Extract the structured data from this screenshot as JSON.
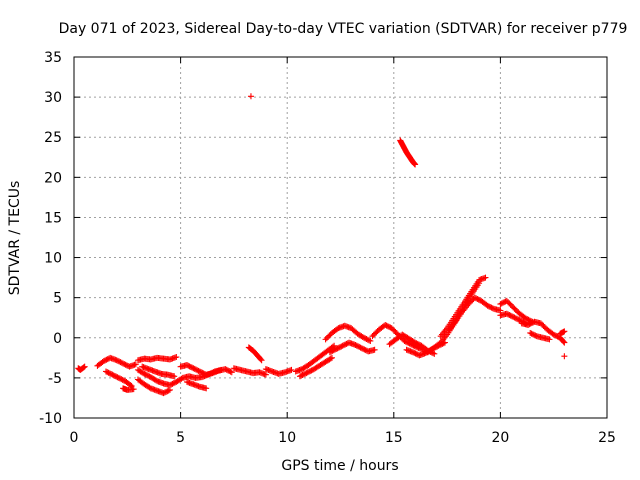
{
  "chart_data": {
    "type": "scatter",
    "title": "Day 071 of 2023, Sidereal Day-to-day VTEC variation (SDTVAR) for receiver p779",
    "xlabel": "GPS time / hours",
    "ylabel": "SDTVAR / TECUs",
    "xlim": [
      0,
      25
    ],
    "ylim": [
      -10,
      35
    ],
    "xticks": [
      "0",
      "5",
      "10",
      "15",
      "20",
      "25"
    ],
    "yticks": [
      "-10",
      "-5",
      "0",
      "5",
      "10",
      "15",
      "20",
      "25",
      "30",
      "35"
    ],
    "xtick_values": [
      0,
      5,
      10,
      15,
      20,
      25
    ],
    "ytick_values": [
      -10,
      -5,
      0,
      5,
      10,
      15,
      20,
      25,
      30,
      35
    ],
    "grid": true,
    "marker": "+",
    "series": [
      {
        "name": "SDTVAR",
        "color": "#ff0000",
        "segments": [
          {
            "x": [
              0.2,
              0.3,
              0.5
            ],
            "y": [
              -3.8,
              -4.0,
              -3.6
            ]
          },
          {
            "x": [
              1.1,
              1.4,
              1.7,
              2.0,
              2.3,
              2.6,
              2.9
            ],
            "y": [
              -3.5,
              -2.9,
              -2.5,
              -2.8,
              -3.2,
              -3.6,
              -3.3
            ]
          },
          {
            "x": [
              1.5,
              1.8,
              2.1,
              2.4,
              2.7
            ],
            "y": [
              -4.2,
              -4.6,
              -5.0,
              -5.4,
              -6.0
            ]
          },
          {
            "x": [
              2.3,
              2.5,
              2.8
            ],
            "y": [
              -6.3,
              -6.5,
              -6.4
            ]
          },
          {
            "x": [
              3.0,
              3.3,
              3.6,
              3.9,
              4.2,
              4.5,
              4.8
            ],
            "y": [
              -2.8,
              -2.6,
              -2.7,
              -2.5,
              -2.6,
              -2.7,
              -2.4
            ]
          },
          {
            "x": [
              3.0,
              3.3,
              3.6,
              3.9,
              4.2,
              4.5,
              4.8,
              5.1,
              5.4,
              5.7,
              6.0,
              6.3,
              6.6,
              6.9
            ],
            "y": [
              -4.0,
              -4.5,
              -4.9,
              -5.4,
              -5.7,
              -5.9,
              -5.5,
              -5.0,
              -4.8,
              -5.0,
              -4.9,
              -4.6,
              -4.2,
              -4.0
            ]
          },
          {
            "x": [
              3.0,
              3.3,
              3.6,
              3.9,
              4.2,
              4.5
            ],
            "y": [
              -5.2,
              -5.8,
              -6.3,
              -6.6,
              -6.9,
              -6.5
            ]
          },
          {
            "x": [
              3.2,
              3.5,
              3.8,
              4.1,
              4.4,
              4.7
            ],
            "y": [
              -3.6,
              -3.9,
              -4.2,
              -4.5,
              -4.6,
              -4.8
            ]
          },
          {
            "x": [
              5.0,
              5.3,
              5.6,
              5.9,
              6.2,
              6.5,
              6.8,
              7.1,
              7.4
            ],
            "y": [
              -3.6,
              -3.4,
              -3.8,
              -4.2,
              -4.6,
              -4.4,
              -4.1,
              -3.9,
              -4.3
            ]
          },
          {
            "x": [
              5.3,
              5.6,
              5.9,
              6.2
            ],
            "y": [
              -5.5,
              -5.8,
              -6.1,
              -6.3
            ]
          },
          {
            "x": [
              7.5,
              7.8,
              8.1,
              8.4,
              8.7,
              9.0
            ],
            "y": [
              -3.8,
              -4.0,
              -4.2,
              -4.4,
              -4.3,
              -4.6
            ]
          },
          {
            "x": [
              8.2,
              8.4,
              8.6,
              8.8
            ],
            "y": [
              -1.2,
              -1.6,
              -2.2,
              -2.8
            ]
          },
          {
            "x": [
              9.0,
              9.3,
              9.6,
              9.9,
              10.2
            ],
            "y": [
              -3.9,
              -4.2,
              -4.5,
              -4.3,
              -4.0
            ]
          },
          {
            "x": [
              10.4,
              10.7,
              11.0,
              11.3,
              11.6,
              11.9,
              12.2
            ],
            "y": [
              -4.2,
              -3.9,
              -3.4,
              -2.8,
              -2.2,
              -1.6,
              -1.0
            ]
          },
          {
            "x": [
              10.6,
              10.9,
              11.2,
              11.5,
              11.8,
              12.1
            ],
            "y": [
              -4.8,
              -4.4,
              -4.0,
              -3.5,
              -3.0,
              -2.5
            ]
          },
          {
            "x": [
              11.8,
              12.1,
              12.4,
              12.7,
              13.0,
              13.3,
              13.6,
              13.9
            ],
            "y": [
              -0.2,
              0.6,
              1.2,
              1.5,
              1.2,
              0.5,
              0.0,
              -0.4
            ]
          },
          {
            "x": [
              12.0,
              12.3,
              12.6,
              12.9,
              13.2,
              13.5,
              13.8,
              14.1
            ],
            "y": [
              -1.8,
              -1.4,
              -1.0,
              -0.6,
              -0.9,
              -1.3,
              -1.7,
              -1.5
            ]
          },
          {
            "x": [
              14.0,
              14.3,
              14.6,
              14.9,
              15.2,
              15.5,
              15.8,
              16.1,
              16.4
            ],
            "y": [
              0.2,
              1.0,
              1.6,
              1.2,
              0.4,
              -0.4,
              -0.8,
              -1.2,
              -1.5
            ]
          },
          {
            "x": [
              14.8,
              15.1,
              15.4,
              15.7,
              16.0,
              16.3,
              16.6,
              16.9
            ],
            "y": [
              -0.8,
              -0.2,
              0.4,
              -0.1,
              -0.6,
              -1.0,
              -1.6,
              -2.0
            ]
          },
          {
            "x": [
              15.6,
              15.9,
              16.2,
              16.5,
              16.8,
              17.1,
              17.4
            ],
            "y": [
              -1.5,
              -1.8,
              -2.2,
              -1.9,
              -1.4,
              -1.0,
              -0.6
            ]
          },
          {
            "x": [
              16.6,
              16.9,
              17.2,
              17.5,
              17.8,
              18.1,
              18.4,
              18.7,
              19.0
            ],
            "y": [
              -1.8,
              -1.2,
              -0.6,
              0.4,
              1.6,
              3.0,
              4.4,
              5.6,
              6.8
            ]
          },
          {
            "x": [
              17.2,
              17.5,
              17.8,
              18.1,
              18.4,
              18.7,
              19.0,
              19.3
            ],
            "y": [
              0.2,
              1.2,
              2.4,
              3.6,
              4.8,
              6.0,
              7.2,
              7.5
            ]
          },
          {
            "x": [
              17.6,
              17.9,
              18.2,
              18.5,
              18.8,
              19.1,
              19.4,
              19.7,
              20.0
            ],
            "y": [
              1.0,
              2.0,
              3.2,
              4.2,
              5.0,
              4.6,
              4.0,
              3.6,
              3.4
            ]
          },
          {
            "x": [
              20.0,
              20.3,
              20.6,
              20.9,
              21.2,
              21.5
            ],
            "y": [
              4.2,
              4.6,
              3.8,
              3.0,
              2.4,
              2.0
            ]
          },
          {
            "x": [
              20.0,
              20.3,
              20.6,
              20.9,
              21.2
            ],
            "y": [
              2.8,
              3.0,
              2.6,
              2.2,
              1.8
            ]
          },
          {
            "x": [
              21.0,
              21.3,
              21.6,
              21.9,
              22.2,
              22.5,
              22.8,
              23.0
            ],
            "y": [
              1.8,
              1.6,
              2.0,
              1.8,
              1.0,
              0.4,
              0.0,
              -0.6
            ]
          },
          {
            "x": [
              21.4,
              21.7,
              22.0,
              22.3
            ],
            "y": [
              0.6,
              0.2,
              0.0,
              -0.2
            ]
          },
          {
            "x": [
              22.8,
              23.0
            ],
            "y": [
              0.5,
              0.8
            ]
          },
          {
            "x": [
              23.0
            ],
            "y": [
              -2.3
            ]
          },
          {
            "x": [
              15.3,
              15.4,
              15.5,
              15.6,
              15.7,
              15.8,
              15.9,
              16.0
            ],
            "y": [
              24.6,
              24.1,
              23.6,
              23.1,
              22.7,
              22.3,
              21.9,
              21.6
            ]
          },
          {
            "x": [
              8.3
            ],
            "y": [
              30.1
            ]
          }
        ]
      }
    ]
  }
}
